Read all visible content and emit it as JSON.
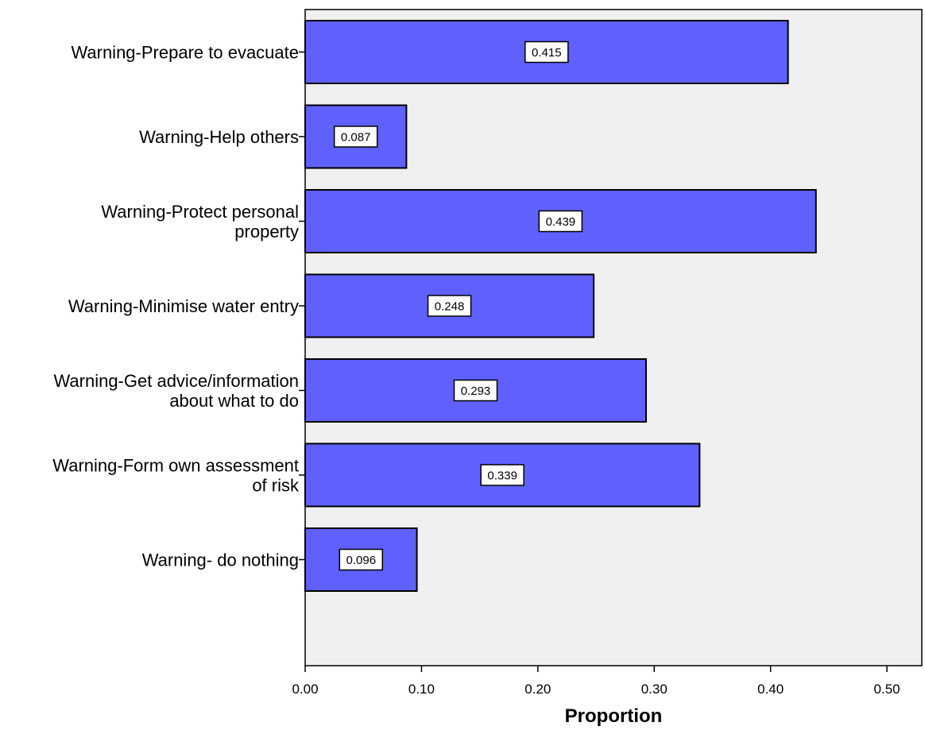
{
  "chart_data": {
    "type": "bar",
    "orientation": "horizontal",
    "categories": [
      [
        "Warning-Prepare to evacuate"
      ],
      [
        "Warning-Help others"
      ],
      [
        "Warning-Protect personal",
        "property"
      ],
      [
        "Warning-Minimise water entry"
      ],
      [
        "Warning-Get advice/information",
        "about what to do"
      ],
      [
        "Warning-Form own assessment",
        "of risk"
      ],
      [
        "Warning- do nothing"
      ]
    ],
    "values": [
      0.415,
      0.087,
      0.439,
      0.248,
      0.293,
      0.339,
      0.096
    ],
    "value_labels": [
      "0.415",
      "0.087",
      "0.439",
      "0.248",
      "0.293",
      "0.339",
      "0.096"
    ],
    "xlabel": "Proportion",
    "ylabel": "",
    "xlim": [
      0,
      0.53
    ],
    "xticks": [
      0,
      0.1,
      0.2,
      0.3,
      0.4,
      0.5
    ],
    "xtick_labels": [
      "0.00",
      "0.10",
      "0.20",
      "0.30",
      "0.40",
      "0.50"
    ],
    "grid": false,
    "colors": {
      "bar_fill": "#6060ff",
      "bar_stroke": "#000000",
      "plot_background": "#f0f0f0",
      "label_box": "#ffffff"
    }
  }
}
